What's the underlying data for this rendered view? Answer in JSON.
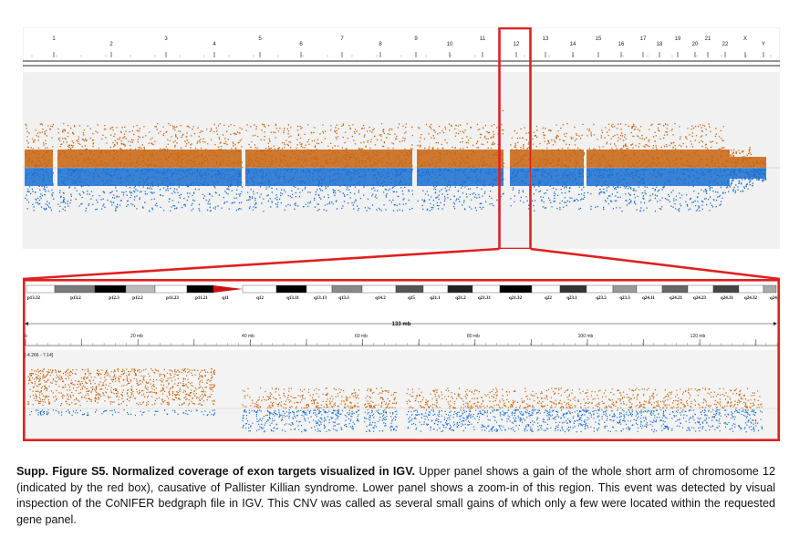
{
  "top_panel": {
    "chromosomes": [
      "1",
      "2",
      "3",
      "4",
      "5",
      "6",
      "7",
      "8",
      "9",
      "10",
      "11",
      "12",
      "13",
      "14",
      "15",
      "16",
      "17",
      "18",
      "19",
      "20",
      "21",
      "22",
      "X",
      "Y"
    ],
    "highlighted_chromosome": "12",
    "gain_color": "#c8640f",
    "loss_color": "#1a6ed0",
    "highlight_color": "#e02020"
  },
  "bottom_panel": {
    "bands": [
      "p13.32",
      "p13.2",
      "p12.3",
      "p12.2",
      "p11.23",
      "p11.21",
      "q11",
      "q12",
      "q13.11",
      "q13.13",
      "q13.3",
      "q14.2",
      "q15",
      "q21.1",
      "q21.2",
      "q21.31",
      "q21.32",
      "q22",
      "q23.1",
      "q23.2",
      "q23.3",
      "q24.11",
      "q24.21",
      "q24.23",
      "q24.31",
      "q24.32",
      "q24.33"
    ],
    "span_label": "133 mb",
    "ruler_labels": [
      "20 mb",
      "40 mb",
      "60 mb",
      "80 mb",
      "100 mb",
      "120 mb"
    ],
    "ruler_start_label": "b",
    "range_label": "[-4.266 - 7.14]"
  },
  "caption": {
    "bold": "Supp. Figure S5. Normalized coverage of exon targets visualized in IGV.",
    "text": " Upper panel shows a gain of the whole short arm of chromosome 12 (indicated by the red box), causative of Pallister Killian syndrome. Lower panel shows a zoom-in of this region. This event was detected by visual inspection of the CoNIFER bedgraph file in IGV. This CNV was called as several small gains of which only a few were located within the requested gene panel."
  }
}
